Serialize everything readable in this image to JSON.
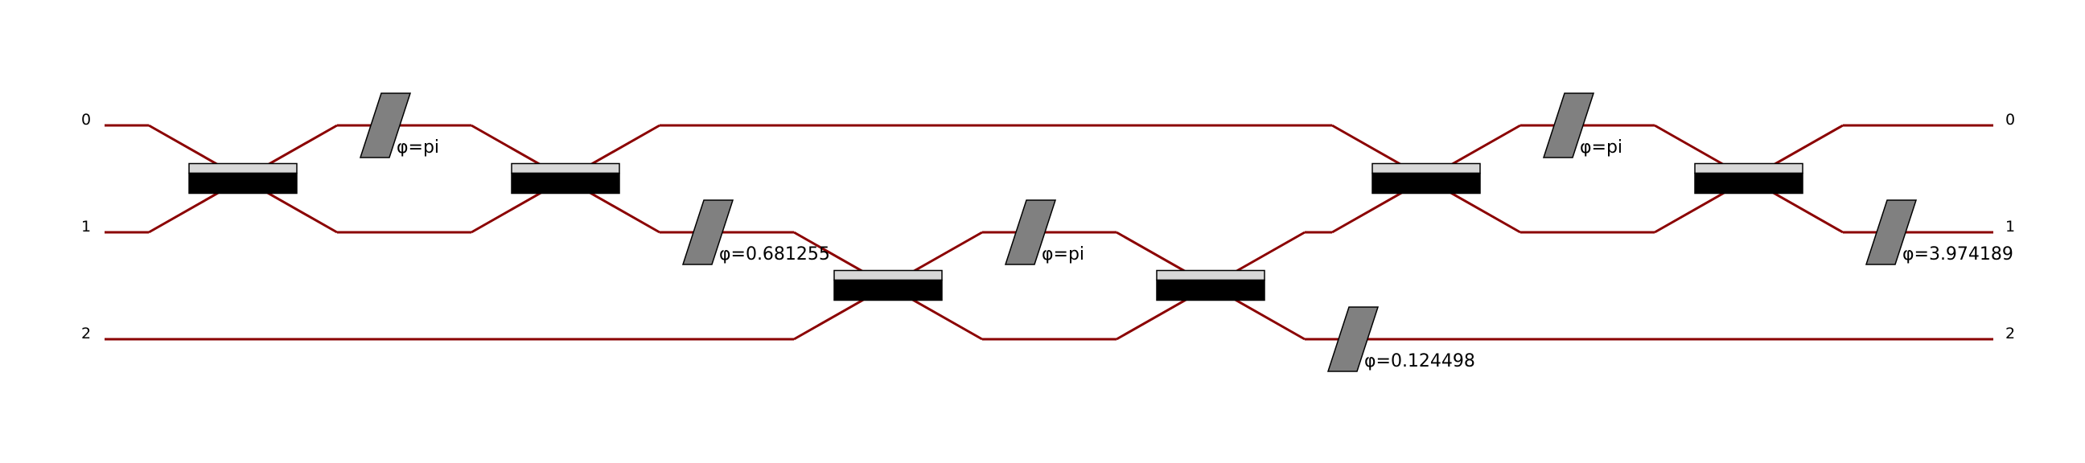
{
  "modes": {
    "left": [
      "0",
      "1",
      "2"
    ],
    "right": [
      "0",
      "1",
      "2"
    ]
  },
  "colors": {
    "wire": "#8b0000",
    "beam_splitter_body": "#000000",
    "beam_splitter_top": "#d8d8d8",
    "phase_shifter": "#808080"
  },
  "components": [
    {
      "type": "beam-splitter",
      "modes": [
        0,
        1
      ],
      "step": 1
    },
    {
      "type": "phase-shifter",
      "mode": 0,
      "step": 2,
      "label": "φ=pi"
    },
    {
      "type": "beam-splitter",
      "modes": [
        0,
        1
      ],
      "step": 3
    },
    {
      "type": "phase-shifter",
      "mode": 1,
      "step": 4,
      "label": "φ=0.681255"
    },
    {
      "type": "beam-splitter",
      "modes": [
        1,
        2
      ],
      "step": 5
    },
    {
      "type": "phase-shifter",
      "mode": 1,
      "step": 6,
      "label": "φ=pi"
    },
    {
      "type": "beam-splitter",
      "modes": [
        1,
        2
      ],
      "step": 7
    },
    {
      "type": "phase-shifter",
      "mode": 2,
      "step": 8,
      "label": "φ=0.124498"
    },
    {
      "type": "beam-splitter",
      "modes": [
        0,
        1
      ],
      "step": 9
    },
    {
      "type": "phase-shifter",
      "mode": 0,
      "step": 10,
      "label": "φ=pi"
    },
    {
      "type": "beam-splitter",
      "modes": [
        0,
        1
      ],
      "step": 11
    },
    {
      "type": "phase-shifter",
      "mode": 1,
      "step": 12,
      "label": "φ=3.974189"
    }
  ]
}
